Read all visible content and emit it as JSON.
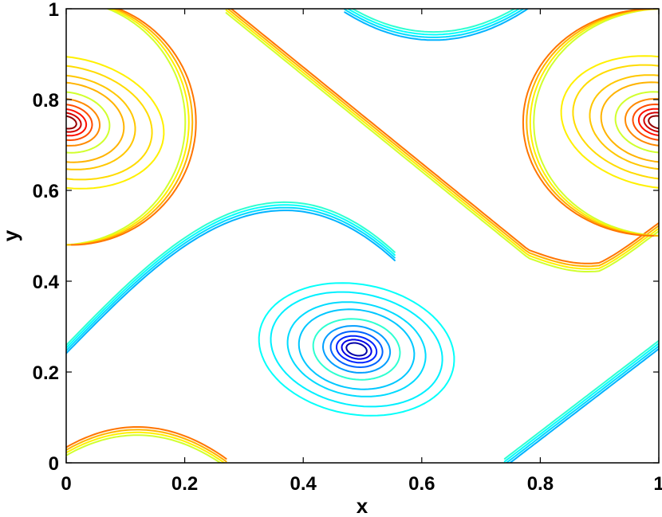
{
  "chart_data": {
    "type": "contour",
    "xlabel": "x",
    "ylabel": "y",
    "xlim": [
      0,
      1
    ],
    "ylim": [
      0,
      1
    ],
    "x_ticks": [
      0,
      0.2,
      0.4,
      0.6,
      0.8,
      1
    ],
    "y_ticks": [
      0,
      0.2,
      0.4,
      0.6,
      0.8,
      1
    ],
    "x_tick_labels": [
      "0",
      "0.2",
      "0.4",
      "0.6",
      "0.8",
      "1"
    ],
    "y_tick_labels": [
      "0",
      "0.2",
      "0.4",
      "0.6",
      "0.8",
      "1"
    ],
    "grid": false,
    "colormap": "jet",
    "features": [
      {
        "kind": "vortex",
        "sign": "negative",
        "center": [
          0.49,
          0.25
        ],
        "color_core": "#0000c0"
      },
      {
        "kind": "vortex",
        "sign": "positive",
        "center": [
          0.0,
          0.75
        ],
        "color_core": "#c00000"
      },
      {
        "kind": "vortex",
        "sign": "positive",
        "center": [
          1.0,
          0.75
        ],
        "color_core": "#c00000"
      }
    ]
  }
}
